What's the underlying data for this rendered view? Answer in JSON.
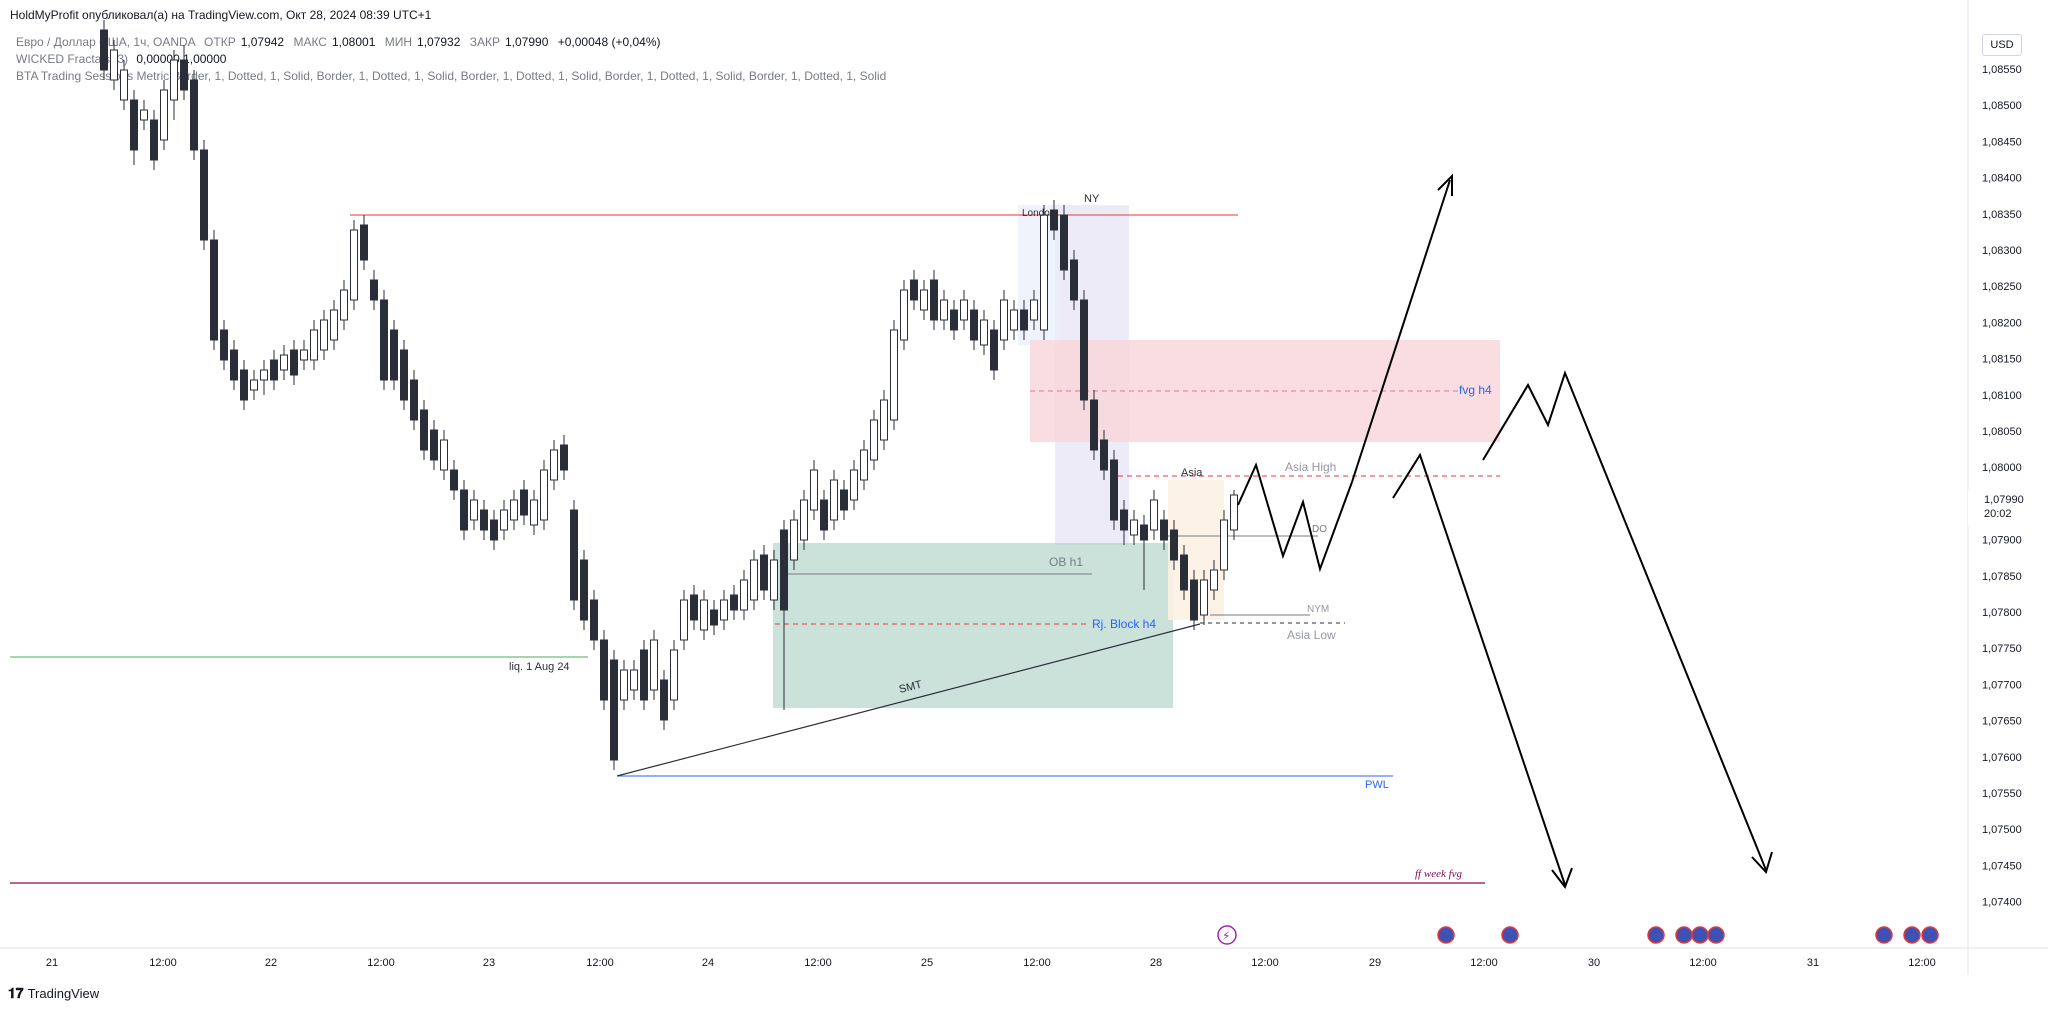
{
  "header": {
    "published": "HoldMyProfit опубликовал(а) на TradingView.com, Окт 28, 2024 08:39 UTC+1"
  },
  "legend": {
    "symbol": "Евро / Доллар США, 1ч, OANDA",
    "open_label": "ОТКР",
    "open": "1,07942",
    "high_label": "МАКС",
    "high": "1,08001",
    "low_label": "МИН",
    "low": "1,07932",
    "close_label": "ЗАКР",
    "close": "1,07990",
    "change": "+0,00048 (+0,04%)",
    "indicator1": "WICKED Fractals (3)",
    "indicator1_values": "0,00000  1,00000",
    "indicator2": "BTA Trading Sessions Metric Border, 1, Dotted, 1, Solid, Border, 1, Dotted, 1, Solid, Border, 1, Dotted, 1, Solid, Border, 1, Dotted, 1, Solid, Border, 1, Dotted, 1, Solid"
  },
  "currency_button": "USD",
  "price_axis": {
    "ticks": [
      "1,08550",
      "1,08500",
      "1,08450",
      "1,08400",
      "1,08350",
      "1,08300",
      "1,08250",
      "1,08200",
      "1,08150",
      "1,08100",
      "1,08050",
      "1,08000",
      "1,07950",
      "1,07900",
      "1,07850",
      "1,07800",
      "1,07750",
      "1,07700",
      "1,07650",
      "1,07600",
      "1,07550",
      "1,07500",
      "1,07450",
      "1,07400"
    ],
    "current_price": "1,07990",
    "countdown": "20:02"
  },
  "time_axis": {
    "labels": [
      "21",
      "12:00",
      "22",
      "12:00",
      "23",
      "12:00",
      "24",
      "12:00",
      "25",
      "12:00",
      "28",
      "12:00",
      "29",
      "12:00",
      "30",
      "12:00",
      "31",
      "12:00"
    ]
  },
  "annotations": {
    "fvg_h4": "fvg h4",
    "asia": "Asia",
    "asia_high": "Asia High",
    "asia_low": "Asia Low",
    "ob_h1": "OB h1",
    "rj_block_h4": "Rj. Block h4",
    "nym": "NYM",
    "do": "DO",
    "smt": "SMT",
    "liq": "liq. 1 Aug 24",
    "pwl": "PWL",
    "ff_week_fvg": "ff week fvg",
    "ny": "NY",
    "london": "London"
  },
  "colors": {
    "up_candle": "#ffffff",
    "down_candle": "#2a2e39",
    "fvg_zone": "#f8d7dc",
    "ob_zone": "#a9cec2",
    "ny_session": "#e6e3f5",
    "asia_session": "#fdf1e3",
    "resistance_line": "#e53935",
    "liq_line": "#4caf50",
    "pwl_line": "#2962ff",
    "ff_line": "#880e4f",
    "label_blue": "#2962ff"
  },
  "footer": {
    "brand": "TradingView"
  },
  "chart_data": {
    "type": "candlestick",
    "timeframe": "1h",
    "symbol": "EURUSD",
    "ylim": [
      1.0738,
      1.086
    ]
  }
}
